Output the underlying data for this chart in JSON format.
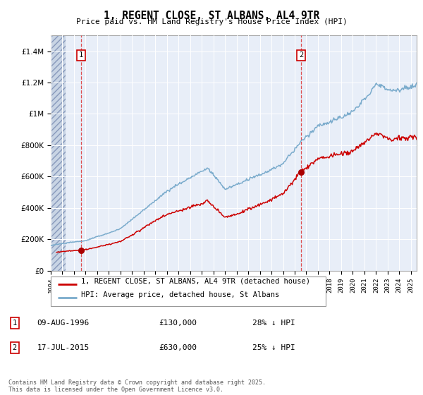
{
  "title": "1, REGENT CLOSE, ST ALBANS, AL4 9TR",
  "subtitle": "Price paid vs. HM Land Registry's House Price Index (HPI)",
  "xlim_start": 1994.0,
  "xlim_end": 2025.5,
  "ylim": [
    0,
    1500000
  ],
  "yticks": [
    0,
    200000,
    400000,
    600000,
    800000,
    1000000,
    1200000,
    1400000
  ],
  "ytick_labels": [
    "£0",
    "£200K",
    "£400K",
    "£600K",
    "£800K",
    "£1M",
    "£1.2M",
    "£1.4M"
  ],
  "transaction1_date": 1996.61,
  "transaction1_price": 130000,
  "transaction2_date": 2015.54,
  "transaction2_price": 630000,
  "legend1": "1, REGENT CLOSE, ST ALBANS, AL4 9TR (detached house)",
  "legend2": "HPI: Average price, detached house, St Albans",
  "note1_label": "1",
  "note1_date": "09-AUG-1996",
  "note1_price": "£130,000",
  "note1_text": "28% ↓ HPI",
  "note2_label": "2",
  "note2_date": "17-JUL-2015",
  "note2_price": "£630,000",
  "note2_text": "25% ↓ HPI",
  "copyright": "Contains HM Land Registry data © Crown copyright and database right 2025.\nThis data is licensed under the Open Government Licence v3.0.",
  "line_color_price": "#cc0000",
  "line_color_hpi": "#7aabcc",
  "plot_bg": "#e8eef8",
  "transaction_marker_color": "#aa0000",
  "dashed_line_color": "#dd3333"
}
